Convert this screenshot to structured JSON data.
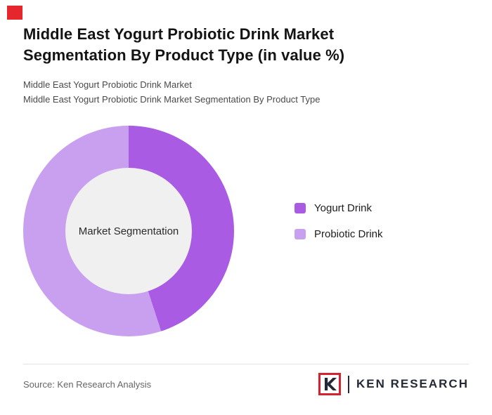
{
  "accent_color": "#e5262c",
  "header": {
    "title": "Middle East Yogurt Probiotic Drink Market Segmentation By Product Type (in value %)",
    "subtitle1": "Middle East Yogurt Probiotic Drink Market",
    "subtitle2": "Middle East Yogurt Probiotic Drink Market Segmentation By Product Type"
  },
  "chart_data": {
    "type": "pie",
    "donut": true,
    "title": "Middle East Yogurt Probiotic Drink Market Segmentation By Product Type (in value %)",
    "labels": [
      "Yogurt Drink",
      "Probiotic Drink"
    ],
    "values": [
      45,
      55
    ],
    "unit": "value %",
    "colors": [
      "#a95ce3",
      "#c9a0f0"
    ],
    "center_label": "Market Segmentation",
    "center_bg": "#f0f0f0",
    "legend_position": "right",
    "start_angle": "top-clockwise"
  },
  "footer": {
    "source": "Source: Ken Research Analysis",
    "brand": {
      "icon_letter": "K",
      "name": "KEN RESEARCH"
    }
  }
}
